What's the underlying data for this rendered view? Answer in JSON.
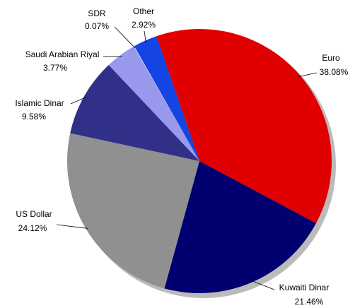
{
  "chart_data": {
    "type": "pie",
    "categories": [
      "Euro",
      "Kuwaiti Dinar",
      "US Dollar",
      "Islamic Dinar",
      "Saudi Arabian Riyal",
      "SDR",
      "Other"
    ],
    "values": [
      38.08,
      21.46,
      24.12,
      9.58,
      3.77,
      0.07,
      2.92
    ],
    "value_labels": [
      "38.08%",
      "21.46%",
      "24.12%",
      "9.58%",
      "3.77%",
      "0.07%",
      "2.92%"
    ],
    "colors": [
      "#e00000",
      "#000070",
      "#909090",
      "#303088",
      "#9898ec",
      "#e4e4f4",
      "#1444e4"
    ]
  }
}
